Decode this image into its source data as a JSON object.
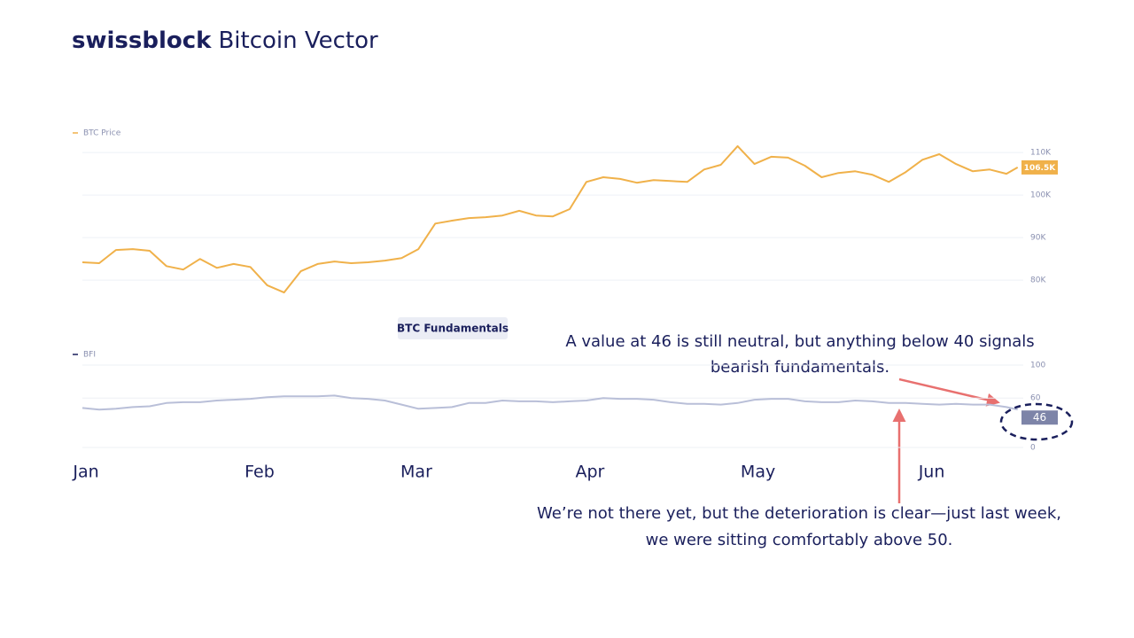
{
  "header": {
    "brand": "swissblock",
    "title": "Bitcoin Vector"
  },
  "chart_data": [
    {
      "type": "line",
      "x": [
        0,
        3,
        6,
        9,
        12,
        15,
        18,
        21,
        24,
        27,
        30,
        33,
        36,
        39,
        42,
        45,
        48,
        51,
        54,
        57,
        60,
        63,
        66,
        69,
        72,
        75,
        78,
        81,
        84,
        87,
        90,
        93,
        96,
        99,
        102,
        105,
        108,
        111,
        114,
        117,
        120,
        123,
        126,
        129,
        132,
        135,
        138,
        141,
        144,
        147,
        150,
        153,
        156,
        159,
        162,
        165,
        167
      ],
      "xlim": [
        0,
        168
      ],
      "series": [
        {
          "name": "BTC Price",
          "color": "#f0b14a",
          "values": [
            84200,
            84000,
            87100,
            87300,
            86900,
            83300,
            82500,
            85000,
            82900,
            83800,
            83100,
            78800,
            77100,
            82100,
            83800,
            84400,
            84000,
            84200,
            84600,
            85200,
            87300,
            93300,
            94000,
            94600,
            94800,
            95200,
            96300,
            95200,
            95000,
            96700,
            103100,
            104200,
            103800,
            102900,
            103500,
            103300,
            103100,
            106000,
            107100,
            111500,
            107300,
            109000,
            108800,
            106900,
            104200,
            105200,
            105600,
            104800,
            103100,
            105400,
            108300,
            109600,
            107300,
            105600,
            106000,
            105000,
            106500
          ],
          "value_labels": [
            null,
            null,
            null,
            null,
            null,
            null,
            null,
            null,
            null,
            null,
            null,
            null,
            null,
            null,
            null,
            null,
            null,
            null,
            null,
            null,
            null,
            null,
            null,
            null,
            null,
            null,
            null,
            null,
            null,
            null,
            null,
            null,
            null,
            null,
            null,
            null,
            null,
            null,
            null,
            null,
            null,
            null,
            null,
            null,
            null,
            null,
            null,
            null,
            null,
            null,
            null,
            null,
            null,
            null,
            null,
            null,
            "106.5K"
          ],
          "label_color": "#f0b14a"
        }
      ],
      "ylim": [
        71500,
        111900
      ],
      "yticks": [
        {
          "value": 80000,
          "label": "80K"
        },
        {
          "value": 90000,
          "label": "90K"
        },
        {
          "value": 100000,
          "label": "100K"
        },
        {
          "value": 110000,
          "label": "110K"
        }
      ],
      "grid": true
    },
    {
      "type": "line",
      "title": "BTC Fundamentals",
      "x": [
        0,
        3,
        6,
        9,
        12,
        15,
        18,
        21,
        24,
        27,
        30,
        33,
        36,
        39,
        42,
        45,
        48,
        51,
        54,
        57,
        60,
        63,
        66,
        69,
        72,
        75,
        78,
        81,
        84,
        87,
        90,
        93,
        96,
        99,
        102,
        105,
        108,
        111,
        114,
        117,
        120,
        123,
        126,
        129,
        132,
        135,
        138,
        141,
        144,
        147,
        150,
        153,
        156,
        159,
        162,
        165,
        167
      ],
      "xlim": [
        0,
        168
      ],
      "xticks": [
        {
          "value": 0,
          "label": "Jan"
        },
        {
          "value": 31,
          "label": "Feb"
        },
        {
          "value": 59,
          "label": "Mar"
        },
        {
          "value": 90,
          "label": "Apr"
        },
        {
          "value": 120,
          "label": "May"
        },
        {
          "value": 151,
          "label": "Jun"
        }
      ],
      "series": [
        {
          "name": "BFI",
          "color": "#b9bfd8",
          "values": [
            48,
            46,
            47,
            49,
            50,
            54,
            55,
            55,
            57,
            58,
            59,
            61,
            62,
            62,
            62,
            63,
            60,
            59,
            57,
            52,
            47,
            48,
            49,
            54,
            54,
            57,
            56,
            56,
            55,
            56,
            57,
            60,
            59,
            59,
            58,
            55,
            53,
            53,
            52,
            54,
            58,
            59,
            59,
            56,
            55,
            55,
            57,
            56,
            54,
            54,
            53,
            52,
            53,
            52,
            52,
            49,
            46
          ],
          "value_labels": [
            null,
            null,
            null,
            null,
            null,
            null,
            null,
            null,
            null,
            null,
            null,
            null,
            null,
            null,
            null,
            null,
            null,
            null,
            null,
            null,
            null,
            null,
            null,
            null,
            null,
            null,
            null,
            null,
            null,
            null,
            null,
            null,
            null,
            null,
            null,
            null,
            null,
            null,
            null,
            null,
            null,
            null,
            null,
            null,
            null,
            null,
            null,
            null,
            null,
            null,
            null,
            null,
            null,
            null,
            null,
            null,
            "46"
          ],
          "label_color": "#7d84a8",
          "legend_color": "#1a1f5c"
        }
      ],
      "ylim": [
        0,
        100
      ],
      "yticks": [
        0,
        60,
        100
      ],
      "grid": true,
      "annotations": [
        [
          "A value at 46 is still neutral, but anything below 40 signals",
          "bearish fundamentals."
        ],
        [
          "We’re not there yet, but the deterioration is clear—just last week,",
          "we were sitting comfortably above 50."
        ]
      ]
    }
  ]
}
